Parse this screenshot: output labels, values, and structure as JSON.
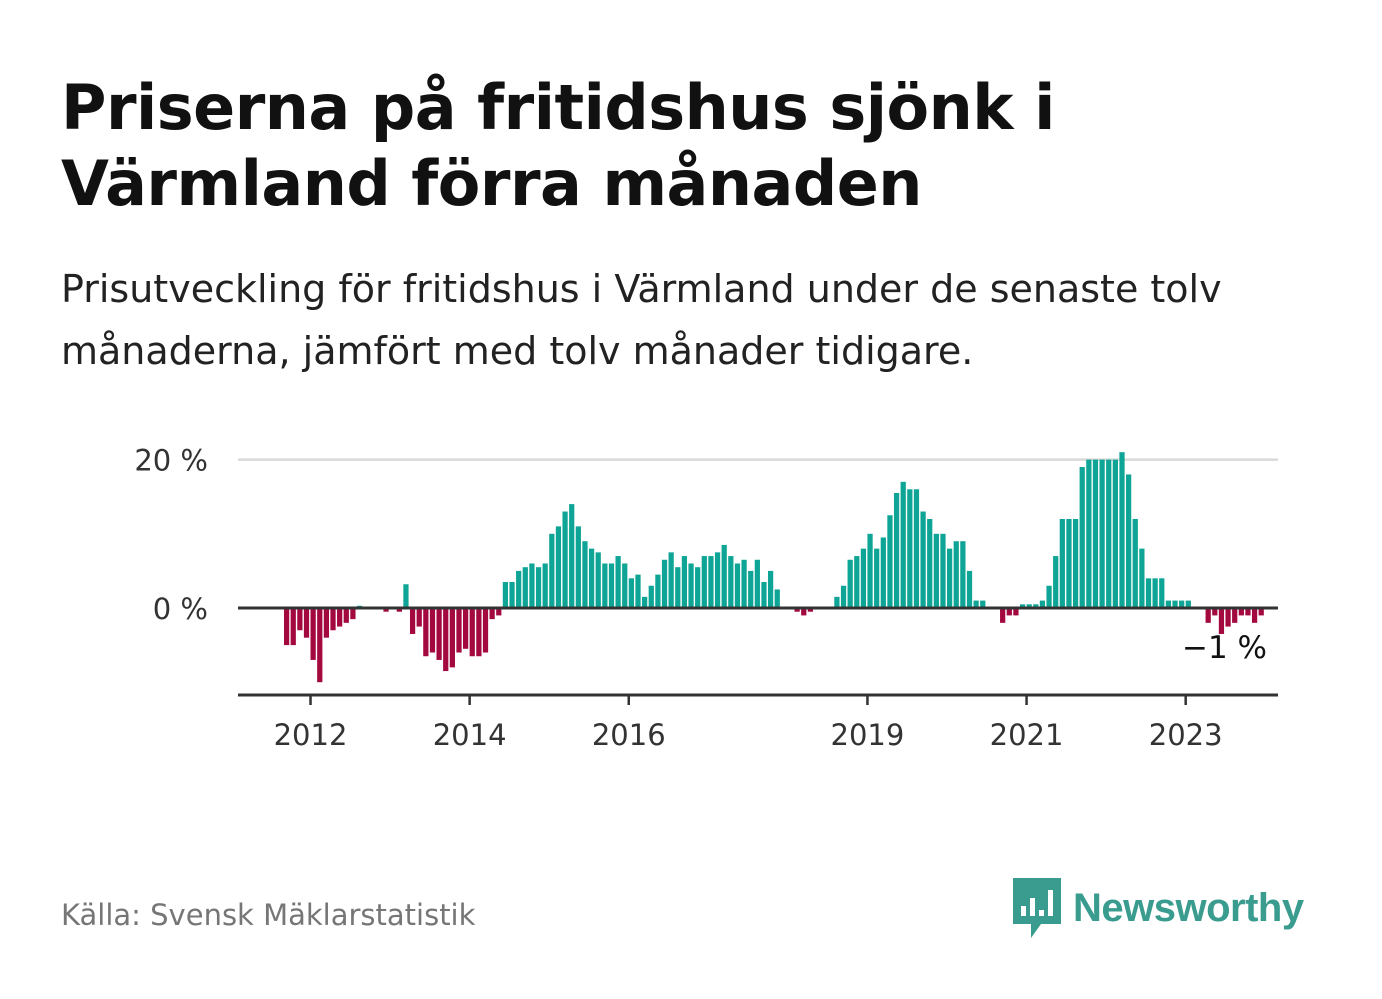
{
  "header": {
    "title": "Priserna på fritidshus sjönk i Värmland förra månaden",
    "subtitle": "Prisutveckling för fritidshus i Värmland under de senaste tolv månaderna, jämfört med tolv månader tidigare."
  },
  "footer": {
    "source": "Källa: Svensk Mäklarstatistik",
    "brand": "Newsworthy"
  },
  "colors": {
    "positive": "#0ea596",
    "negative": "#a3093f",
    "gridline": "#d9d9d9",
    "zero_line": "#333333",
    "brand": "#3a9c8e"
  },
  "chart_data": {
    "type": "bar",
    "x_start": "2011-09",
    "frequency": "monthly",
    "ylim": [
      -12,
      20
    ],
    "yticks": [
      {
        "value": 0,
        "label": "0 %"
      },
      {
        "value": 20,
        "label": "20 %"
      }
    ],
    "xticks": [
      "2012",
      "2014",
      "2016",
      "2019",
      "2021",
      "2023"
    ],
    "annotation": {
      "text": "−1 %",
      "value": -1
    },
    "values": [
      -5,
      -5,
      -3,
      -4,
      -7,
      -10,
      -4,
      -3,
      -2.5,
      -2,
      -1.5,
      0.3,
      0,
      0,
      0,
      -0.5,
      -0.2,
      -0.5,
      3.2,
      -3.5,
      -2.5,
      -6.5,
      -6,
      -7,
      -8.5,
      -8,
      -6,
      -5.5,
      -6.5,
      -6.5,
      -6,
      -1.5,
      -1,
      3.5,
      3.5,
      5,
      5.5,
      6,
      5.5,
      6,
      10,
      11,
      13,
      14,
      11,
      9,
      8,
      7.5,
      6,
      6,
      7,
      6,
      4,
      4.5,
      1.5,
      3,
      4.5,
      6.5,
      7.5,
      5.5,
      7,
      6,
      5.5,
      7,
      7,
      7.5,
      8.5,
      7,
      6,
      6.5,
      5,
      6.5,
      3.5,
      5,
      2.5,
      0,
      0,
      -0.5,
      -1,
      -0.5,
      0,
      0,
      0,
      1.5,
      3,
      6.5,
      7,
      8,
      10,
      8,
      9.5,
      12.5,
      15.5,
      17,
      16,
      16,
      13,
      12,
      10,
      10,
      8,
      9,
      9,
      5,
      1,
      1,
      0,
      0,
      -2,
      -1,
      -1,
      0.5,
      0.5,
      0.5,
      1,
      3,
      7,
      12,
      12,
      12,
      19,
      20,
      20,
      20,
      20,
      20,
      21,
      18,
      12,
      8,
      4,
      4,
      4,
      1,
      1,
      1,
      1,
      0,
      0,
      -2,
      -1,
      -3.5,
      -2.5,
      -2,
      -1,
      -1,
      -2,
      -1
    ]
  }
}
